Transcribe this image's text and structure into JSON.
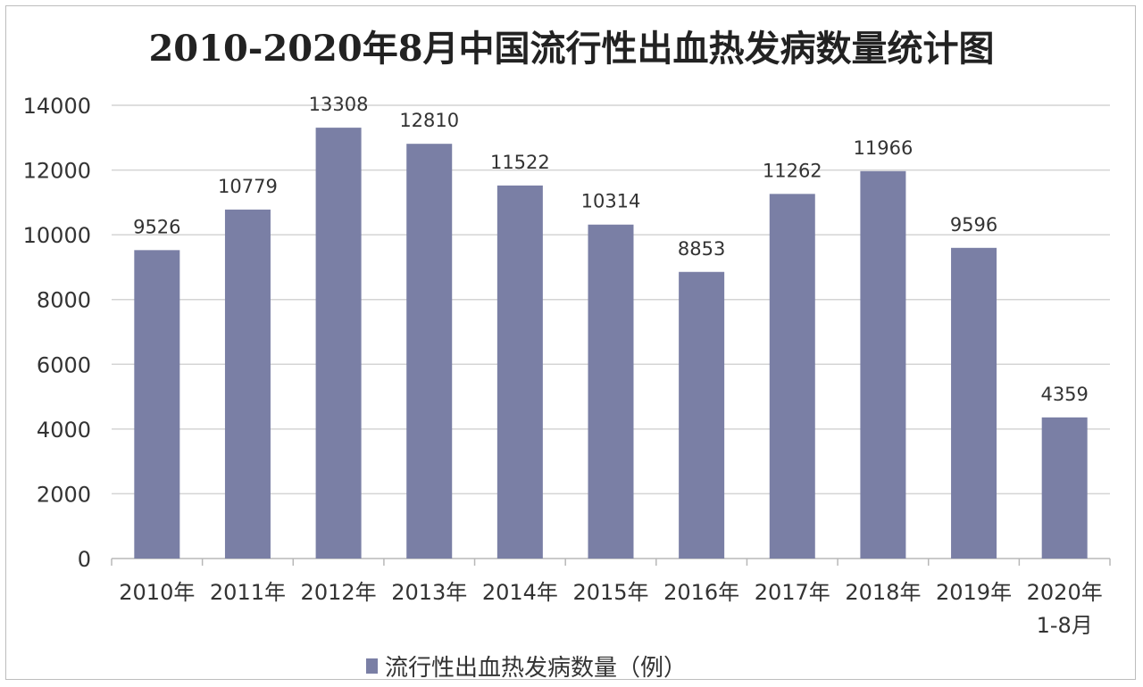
{
  "chart_data": {
    "type": "bar",
    "title": "2010-2020年8月中国流行性出血热发病数量统计图",
    "categories": [
      [
        "2010年"
      ],
      [
        "2011年"
      ],
      [
        "2012年"
      ],
      [
        "2013年"
      ],
      [
        "2014年"
      ],
      [
        "2015年"
      ],
      [
        "2016年"
      ],
      [
        "2017年"
      ],
      [
        "2018年"
      ],
      [
        "2019年"
      ],
      [
        "2020年",
        "1-8月"
      ]
    ],
    "series": [
      {
        "name": "流行性出血热发病数量（例）",
        "values": [
          9526,
          10779,
          13308,
          12810,
          11522,
          10314,
          8853,
          11262,
          11966,
          9596,
          4359
        ]
      }
    ],
    "ylim": [
      0,
      14000
    ],
    "yticks": [
      0,
      2000,
      4000,
      6000,
      8000,
      10000,
      12000,
      14000
    ],
    "grid": true,
    "legend_position": "bottom-center",
    "bar_color": "#7a7fa5",
    "gridline_color": "#d4d4d4",
    "text_color": "#333333"
  }
}
